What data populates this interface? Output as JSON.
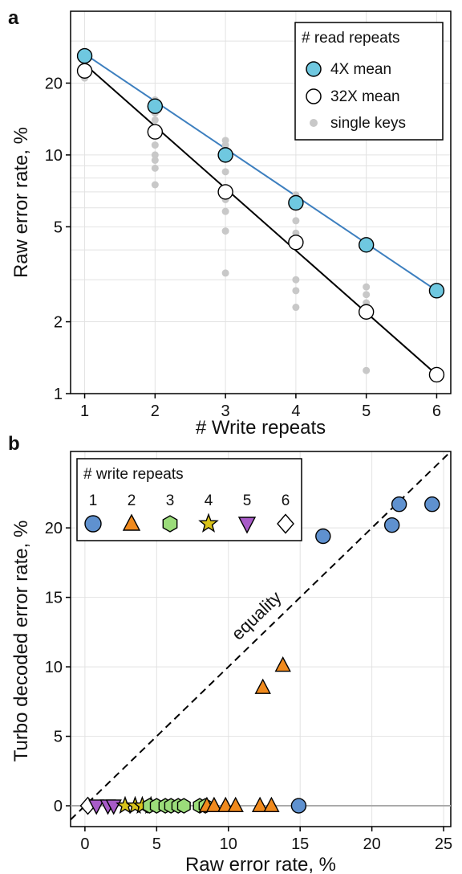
{
  "colors": {
    "mean4x": "#6fc8e0",
    "line4x": "#3d7fbf",
    "single": "#c8c8c8",
    "grid": "#e2e2e2",
    "zero_line": "#aaaaaa",
    "wr1": "#5f91cf",
    "wr2": "#f08a1d",
    "wr3": "#9bdc7a",
    "wr4": "#d9c31a",
    "wr5": "#a85bc8",
    "wr6": "#ffffff"
  },
  "chart_data": [
    {
      "panel": "a",
      "type": "scatter",
      "scale_y": "log",
      "xlabel": "# Write repeats",
      "ylabel": "Raw error rate, %",
      "xlim": [
        0.8,
        6.2
      ],
      "ylim": [
        1,
        40
      ],
      "xticks": [
        "1",
        "2",
        "3",
        "4",
        "5",
        "6"
      ],
      "yticks": [
        "1",
        "2",
        "5",
        "10",
        "20"
      ],
      "grid": true,
      "legend": {
        "title": "# read repeats",
        "placement": "top-right",
        "entries": [
          "4X mean",
          "32X mean",
          "single keys"
        ]
      },
      "series": [
        {
          "name": "4X mean",
          "marker": "circle-filled",
          "x": [
            1,
            2,
            3,
            4,
            5,
            6
          ],
          "y": [
            26,
            16,
            10,
            6.3,
            4.2,
            2.7
          ],
          "fit_line": [
            [
              1,
              26.5
            ],
            [
              6,
              2.7
            ]
          ]
        },
        {
          "name": "32X mean",
          "marker": "circle-open",
          "x": [
            1,
            2,
            3,
            4,
            5,
            6
          ],
          "y": [
            22.5,
            12.5,
            7,
            4.3,
            2.2,
            1.2
          ],
          "fit_line": [
            [
              1,
              24
            ],
            [
              6,
              1.2
            ]
          ]
        },
        {
          "name": "single keys",
          "marker": "dot",
          "x": [
            1,
            1,
            1,
            2,
            2,
            2,
            2,
            2,
            2,
            2,
            2,
            2,
            3,
            3,
            3,
            3,
            3,
            3,
            3,
            3,
            3,
            4,
            4,
            4,
            4,
            4,
            4,
            4,
            4,
            5,
            5,
            5,
            5
          ],
          "y": [
            27,
            23,
            21,
            17,
            15,
            14,
            12.5,
            11,
            10,
            9.5,
            8.8,
            7.5,
            11.5,
            11,
            10,
            8.5,
            7,
            6.5,
            5.8,
            4.8,
            3.2,
            6.8,
            6.4,
            6.1,
            5.3,
            4.7,
            3.0,
            2.7,
            2.3,
            2.8,
            2.6,
            2.4,
            1.25
          ]
        }
      ]
    },
    {
      "panel": "b",
      "type": "scatter",
      "xlabel": "Raw error rate, %",
      "ylabel": "Turbo decoded error rate, %",
      "xlim": [
        -1,
        25.5
      ],
      "ylim": [
        -1.5,
        25.5
      ],
      "xticks": [
        "0",
        "5",
        "10",
        "15",
        "20",
        "25"
      ],
      "yticks": [
        "0",
        "5",
        "10",
        "15",
        "20"
      ],
      "grid": true,
      "annotation": "equality",
      "legend": {
        "title": "# write repeats",
        "placement": "top-left",
        "entries": [
          "1",
          "2",
          "3",
          "4",
          "5",
          "6"
        ]
      },
      "series": [
        {
          "name": "1",
          "marker": "circle",
          "x": [
            14.9,
            16.6,
            21.4,
            21.9,
            24.2
          ],
          "y": [
            0,
            19.4,
            20.2,
            21.7,
            21.7
          ]
        },
        {
          "name": "2",
          "marker": "triangle",
          "x": [
            8.5,
            9.0,
            9.8,
            10.5,
            12.2,
            13.0,
            12.4,
            13.8
          ],
          "y": [
            0,
            0,
            0,
            0,
            0,
            0,
            8.5,
            10.1
          ]
        },
        {
          "name": "3",
          "marker": "hexagon",
          "x": [
            4.5,
            5.0,
            5.6,
            6.0,
            6.5,
            6.9,
            8.0,
            8.4
          ],
          "y": [
            0,
            0,
            0,
            0,
            0,
            0,
            0,
            0
          ]
        },
        {
          "name": "4",
          "marker": "star",
          "x": [
            2.8,
            3.5,
            4.0,
            4.6
          ],
          "y": [
            0,
            0,
            0,
            0
          ]
        },
        {
          "name": "5",
          "marker": "triangle-down",
          "x": [
            0.8,
            1.6,
            2.0
          ],
          "y": [
            0,
            0,
            0
          ]
        },
        {
          "name": "6",
          "marker": "diamond",
          "x": [
            0.2
          ],
          "y": [
            0
          ]
        }
      ]
    }
  ]
}
